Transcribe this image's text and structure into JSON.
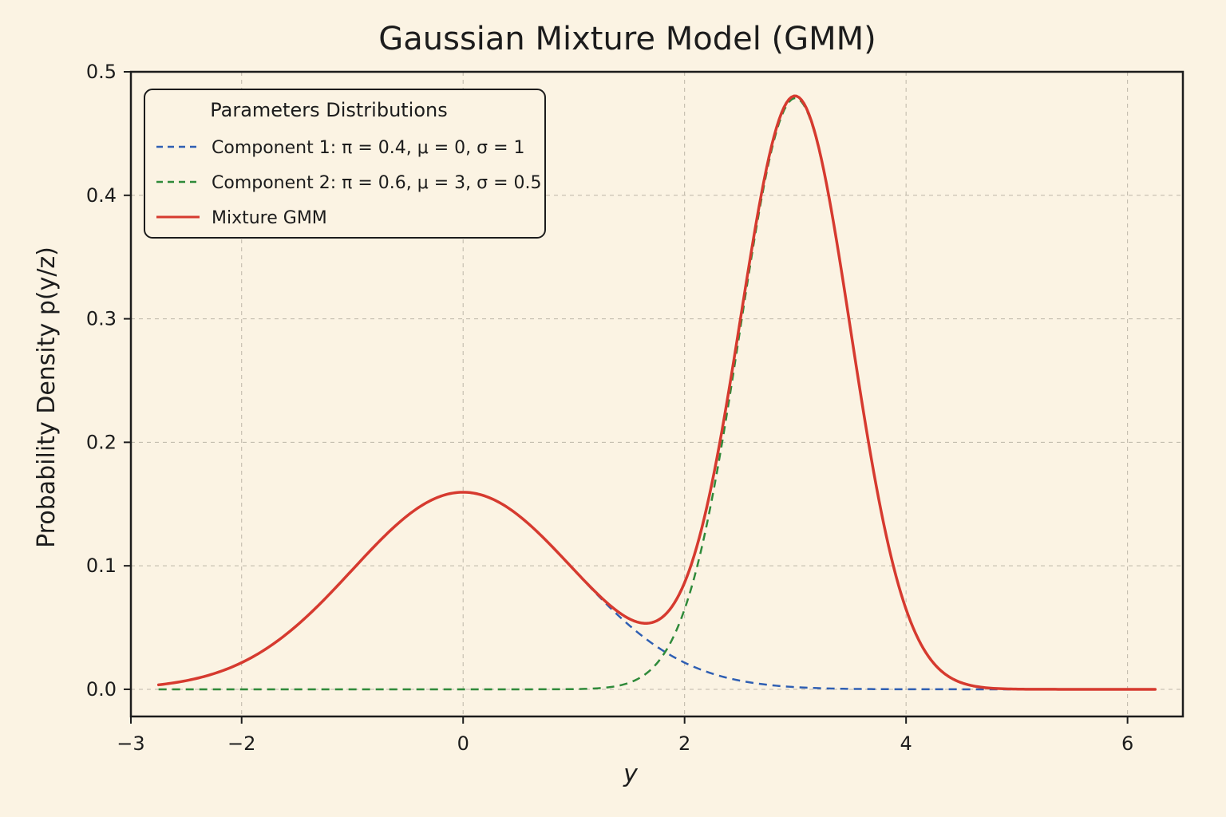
{
  "chart_data": {
    "type": "line",
    "title": "Gaussian Mixture Model (GMM)",
    "xlabel": "y",
    "ylabel": "Probability Density p(y/z)",
    "xlim": [
      -3,
      6.5
    ],
    "ylim": [
      -0.022,
      0.5
    ],
    "x_range": [
      -2.75,
      6.25
    ],
    "xticks": [
      -3,
      -2,
      0,
      2,
      4,
      6
    ],
    "xtick_labels": [
      "−3",
      "−2",
      "0",
      "2",
      "4",
      "6"
    ],
    "yticks": [
      0.0,
      0.1,
      0.2,
      0.3,
      0.4,
      0.5
    ],
    "ytick_labels": [
      "0.0",
      "0.1",
      "0.2",
      "0.3",
      "0.4",
      "0.5"
    ],
    "grid": true,
    "legend_title": "Parameters Distributions",
    "legend_position": "top-left",
    "series": [
      {
        "name": "Component 1: π = 0.4, μ = 0, σ = 1",
        "style": "dashed",
        "color": "#2f5fb3",
        "weight": 0.4,
        "mu": 0,
        "sigma": 1
      },
      {
        "name": "Component 2: π = 0.6, μ = 3, σ = 0.5",
        "style": "dashed",
        "color": "#2f8a3a",
        "weight": 0.6,
        "mu": 3,
        "sigma": 0.5
      },
      {
        "name": "Mixture GMM",
        "style": "solid",
        "color": "#d63a2f"
      }
    ],
    "peaks": {
      "component_1": {
        "x": 0,
        "y": 0.16
      },
      "component_2": {
        "x": 3,
        "y": 0.48
      },
      "mixture": [
        {
          "x": 0,
          "y": 0.16
        },
        {
          "x": 3,
          "y": 0.48
        }
      ]
    }
  }
}
